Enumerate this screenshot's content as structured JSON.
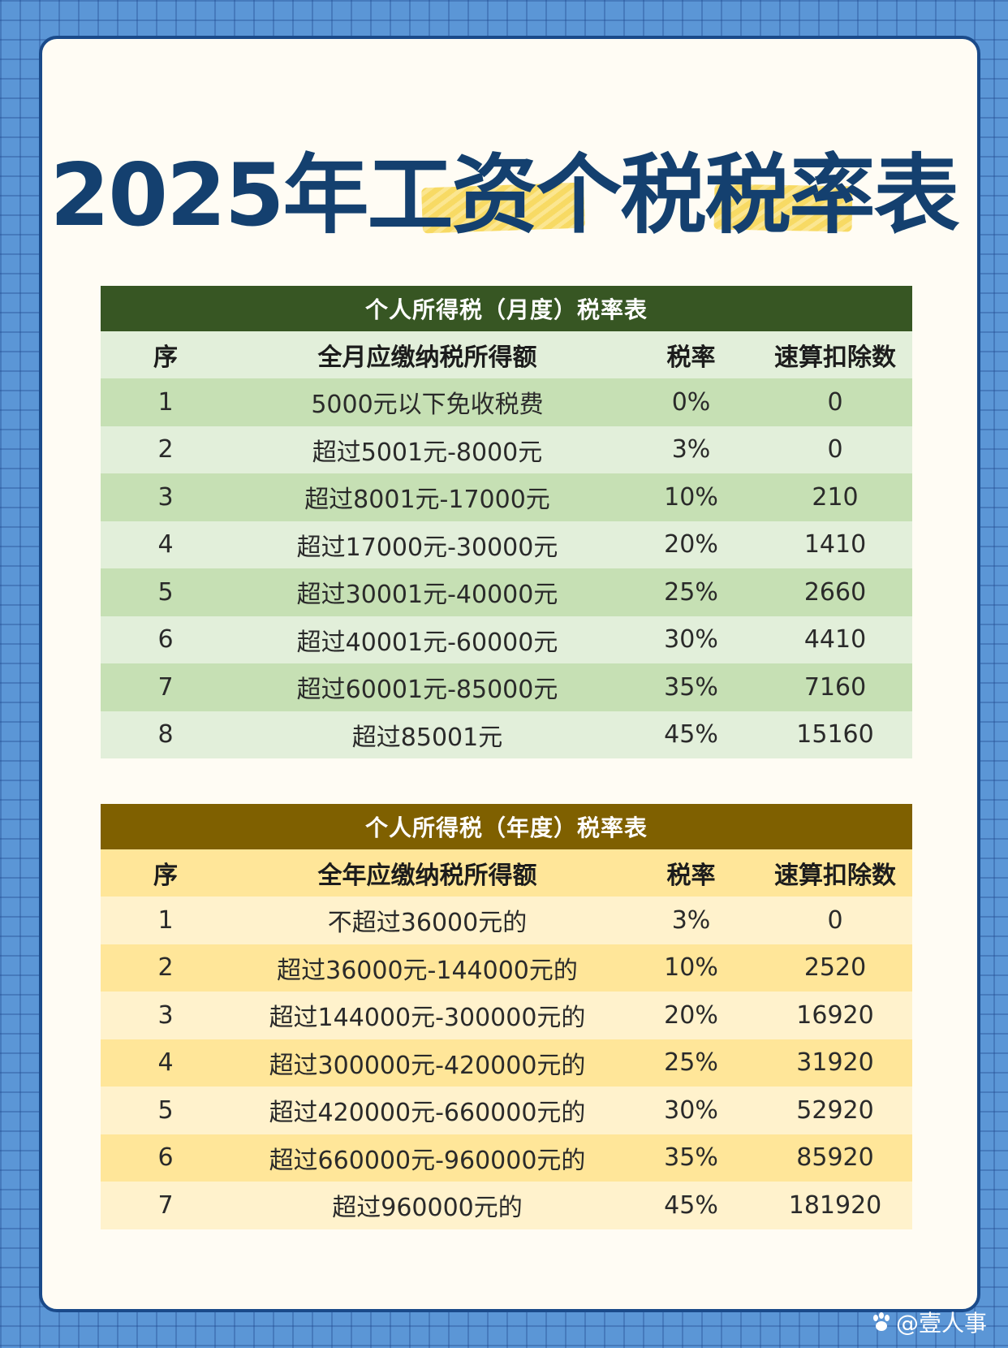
{
  "title": "2025年工资个税税率表",
  "colors": {
    "background": "#5b96d6",
    "title": "#14406f",
    "monthly_caption": "#375623",
    "monthly_row_dark": "#c6e0b4",
    "monthly_row_light": "#e2efda",
    "annual_caption": "#7f6000",
    "annual_row_dark": "#ffe699",
    "annual_row_light": "#fff2cc"
  },
  "monthly": {
    "caption": "个人所得税（月度）税率表",
    "headers": [
      "序",
      "全月应缴纳税所得额",
      "税率",
      "速算扣除数"
    ],
    "rows": [
      [
        "1",
        "5000元以下免收税费",
        "0%",
        "0"
      ],
      [
        "2",
        "超过5001元-8000元",
        "3%",
        "0"
      ],
      [
        "3",
        "超过8001元-17000元",
        "10%",
        "210"
      ],
      [
        "4",
        "超过17000元-30000元",
        "20%",
        "1410"
      ],
      [
        "5",
        "超过30001元-40000元",
        "25%",
        "2660"
      ],
      [
        "6",
        "超过40001元-60000元",
        "30%",
        "4410"
      ],
      [
        "7",
        "超过60001元-85000元",
        "35%",
        "7160"
      ],
      [
        "8",
        "超过85001元",
        "45%",
        "15160"
      ]
    ]
  },
  "annual": {
    "caption": "个人所得税（年度）税率表",
    "headers": [
      "序",
      "全年应缴纳税所得额",
      "税率",
      "速算扣除数"
    ],
    "rows": [
      [
        "1",
        "不超过36000元的",
        "3%",
        "0"
      ],
      [
        "2",
        "超过36000元-144000元的",
        "10%",
        "2520"
      ],
      [
        "3",
        "超过144000元-300000元的",
        "20%",
        "16920"
      ],
      [
        "4",
        "超过300000元-420000元的",
        "25%",
        "31920"
      ],
      [
        "5",
        "超过420000元-660000元的",
        "30%",
        "52920"
      ],
      [
        "6",
        "超过660000元-960000元的",
        "35%",
        "85920"
      ],
      [
        "7",
        "超过960000元的",
        "45%",
        "181920"
      ]
    ]
  },
  "watermark": {
    "text": "@壹人事",
    "icon": "paw-icon"
  }
}
